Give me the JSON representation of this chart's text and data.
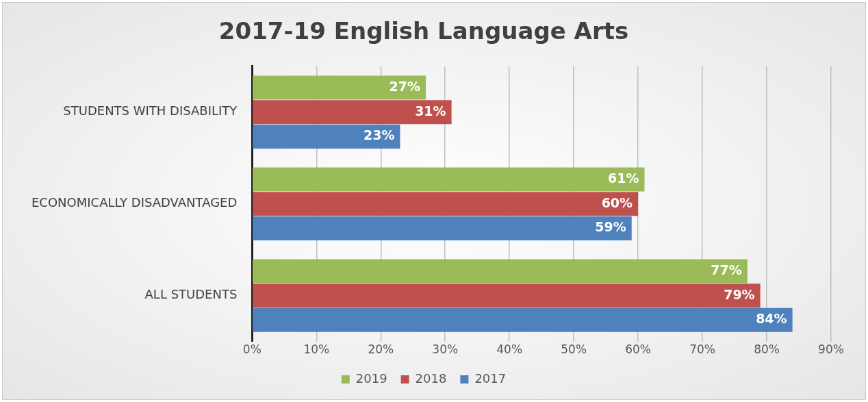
{
  "chart_data": {
    "type": "bar",
    "orientation": "horizontal",
    "title": "2017-19 English Language Arts",
    "categories": [
      "STUDENTS WITH DISABILITY",
      "ECONOMICALLY DISADVANTAGED",
      "ALL STUDENTS"
    ],
    "series": [
      {
        "name": "2019",
        "color": "#9bbb59",
        "values": [
          27,
          61,
          77
        ],
        "value_labels": [
          "27%",
          "61%",
          "77%"
        ]
      },
      {
        "name": "2018",
        "color": "#c0504d",
        "values": [
          31,
          60,
          79
        ],
        "value_labels": [
          "31%",
          "60%",
          "79%"
        ]
      },
      {
        "name": "2017",
        "color": "#4f81bd",
        "values": [
          23,
          59,
          84
        ],
        "value_labels": [
          "23%",
          "59%",
          "84%"
        ]
      }
    ],
    "xlim": [
      0,
      90
    ],
    "xticks": [
      {
        "value": 0,
        "label": "0%"
      },
      {
        "value": 10,
        "label": "10%"
      },
      {
        "value": 20,
        "label": "20%"
      },
      {
        "value": 30,
        "label": "30%"
      },
      {
        "value": 40,
        "label": "40%"
      },
      {
        "value": 50,
        "label": "50%"
      },
      {
        "value": 60,
        "label": "60%"
      },
      {
        "value": 70,
        "label": "70%"
      },
      {
        "value": 80,
        "label": "80%"
      },
      {
        "value": 90,
        "label": "90%"
      }
    ],
    "grid": "x",
    "legend": "bottom"
  }
}
